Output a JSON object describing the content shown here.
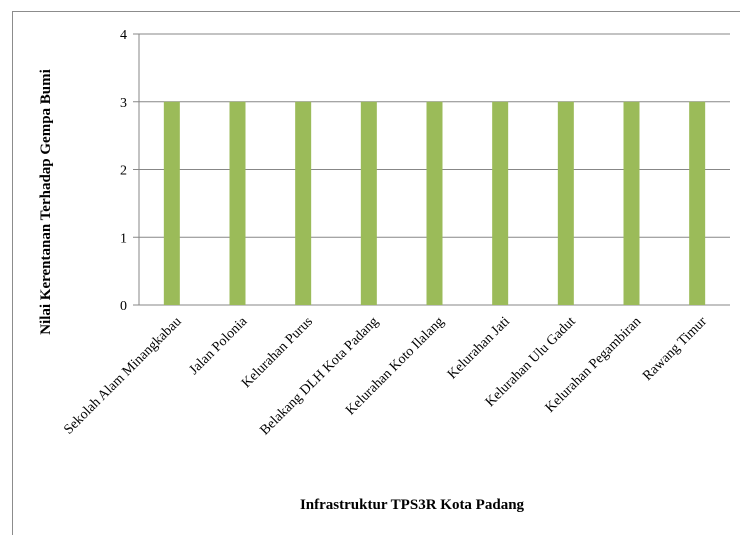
{
  "chart_data": {
    "type": "bar",
    "title": "",
    "xlabel": "Infrastruktur TPS3R Kota Padang",
    "ylabel": "Nilai Kerentanan Terhadap Gempa Bumi",
    "categories": [
      "Sekolah Alam Minangkabau",
      "Jalan Polonia",
      "Kelurahan Purus",
      "Belakang DLH Kota Padang",
      "Kelurahan Koto Ilalang",
      "Kelurahan Jati",
      "Kelurahan Ulu Gadut",
      "Kelurahan Pegambiran",
      "Rawang Timur"
    ],
    "values": [
      3,
      3,
      3,
      3,
      3,
      3,
      3,
      3,
      3
    ],
    "ylim": [
      0,
      4
    ],
    "yticks": [
      0,
      1,
      2,
      3,
      4
    ],
    "grid": true,
    "bar_color": "#9bbb59",
    "grid_color": "#878787"
  }
}
